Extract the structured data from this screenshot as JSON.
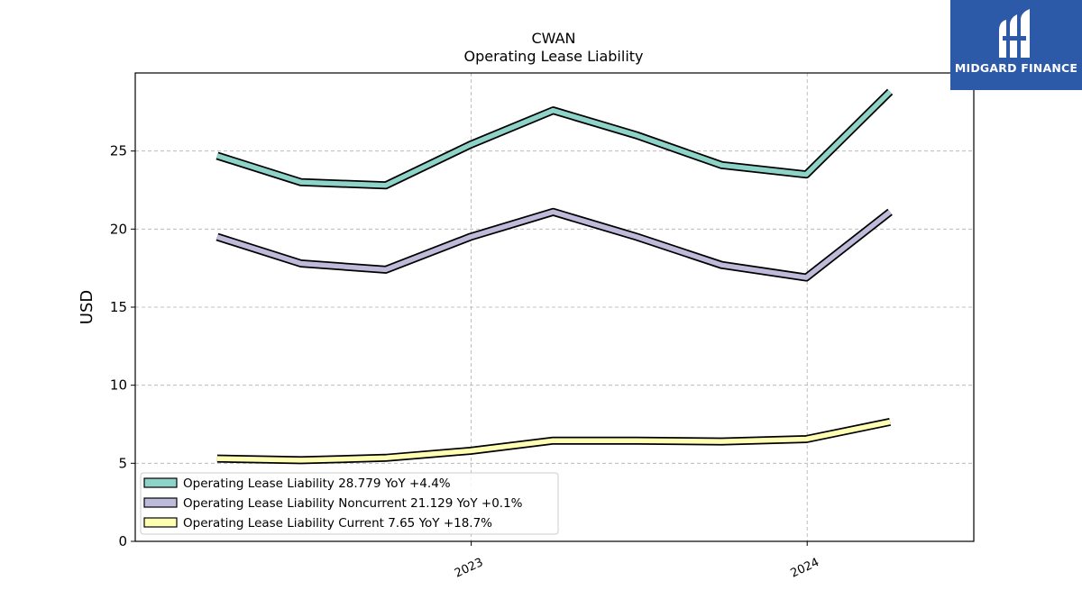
{
  "brand": {
    "name": "MIDGARD FINANCE",
    "color": "#2d5aa8"
  },
  "chart_data": {
    "type": "line",
    "title": "CWAN",
    "subtitle": "Operating Lease Liability",
    "xlabel": "",
    "ylabel": "USD",
    "ylim": [
      0,
      30
    ],
    "yticks": [
      0,
      5,
      10,
      15,
      20,
      25
    ],
    "xticks": [
      "2023",
      "2024"
    ],
    "grid": true,
    "legend_position": "lower-left",
    "x": [
      "2022-03-31",
      "2022-06-30",
      "2022-09-30",
      "2022-12-31",
      "2023-03-31",
      "2023-06-30",
      "2023-09-30",
      "2023-12-31",
      "2024-03-31"
    ],
    "series": [
      {
        "name": "Operating Lease Liability",
        "legend": "Operating Lease Liability  28.779 YoY +4.4%",
        "color": "#8dd3c7",
        "values": [
          24.7,
          23.0,
          22.8,
          25.4,
          27.6,
          26.0,
          24.1,
          23.5,
          28.8
        ]
      },
      {
        "name": "Operating Lease Liability Noncurrent",
        "legend": "Operating Lease Liability Noncurrent  21.129 YoY +0.1%",
        "color": "#bebada",
        "values": [
          19.5,
          17.8,
          17.4,
          19.5,
          21.1,
          19.5,
          17.7,
          16.9,
          21.1
        ]
      },
      {
        "name": "Operating Lease Liability Current",
        "legend": "Operating Lease Liability Current  7.65 YoY +18.7%",
        "color": "#ffffb3",
        "values": [
          5.3,
          5.2,
          5.35,
          5.8,
          6.45,
          6.45,
          6.4,
          6.55,
          7.65
        ]
      }
    ]
  }
}
